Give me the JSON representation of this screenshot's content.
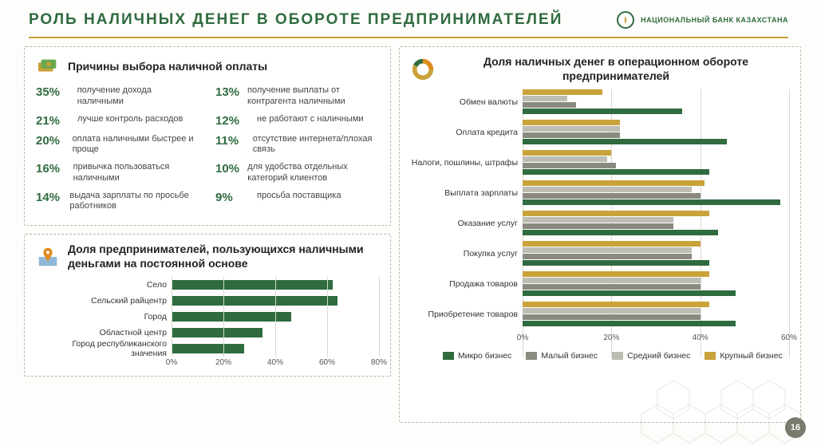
{
  "colors": {
    "title": "#2f6b3f",
    "gold": "#c9a23a",
    "green": "#2f6b3f",
    "grey_mid": "#8a8a80",
    "grey_light": "#bdbdb3",
    "orange": "#e08b1f",
    "page_badge": "#7a7a6e"
  },
  "header": {
    "title": "РОЛЬ НАЛИЧНЫХ ДЕНЕГ В ОБОРОТЕ ПРЕДПРИНИМАТЕЛЕЙ",
    "brand": "НАЦИОНАЛЬНЫЙ БАНК КАЗАХСТАНА"
  },
  "page_number": "16",
  "reasons": {
    "title": "Причины выбора наличной оплаты",
    "left": [
      {
        "pct": "35%",
        "txt": "получение дохода наличными"
      },
      {
        "pct": "21%",
        "txt": "лучше контроль расходов"
      },
      {
        "pct": "20%",
        "txt": "оплата наличными быстрее и проще"
      },
      {
        "pct": "16%",
        "txt": "привычка пользоваться наличными"
      },
      {
        "pct": "14%",
        "txt": "выдача зарплаты по просьбе работников"
      }
    ],
    "right": [
      {
        "pct": "13%",
        "txt": "получение выплаты от контрагента наличными"
      },
      {
        "pct": "12%",
        "txt": "не работают с наличными"
      },
      {
        "pct": "11%",
        "txt": "отсутствие интернета/плохая связь"
      },
      {
        "pct": "10%",
        "txt": "для удобства отдельных категорий клиентов"
      },
      {
        "pct": "9%",
        "txt": "просьба поставщика"
      }
    ]
  },
  "usage_chart": {
    "title": "Доля предпринимателей, пользующихся наличными деньгами на постоянной основе",
    "type": "bar-horizontal",
    "xmax": 80,
    "ticks": [
      0,
      20,
      40,
      60,
      80
    ],
    "bar_color": "#2f6b3f",
    "rows": [
      {
        "label": "Село",
        "value": 62
      },
      {
        "label": "Сельский райцентр",
        "value": 64
      },
      {
        "label": "Город",
        "value": 46
      },
      {
        "label": "Областной центр",
        "value": 35
      },
      {
        "label": "Город республиканского значения",
        "value": 28
      }
    ]
  },
  "ops_chart": {
    "title": "Доля наличных денег в операционном обороте предпринимателей",
    "type": "grouped-bar-horizontal",
    "xmax": 60,
    "ticks": [
      0,
      20,
      40,
      60
    ],
    "series": [
      {
        "name": "Микро бизнес",
        "color": "#2f6b3f"
      },
      {
        "name": "Малый бизнес",
        "color": "#8a8a80"
      },
      {
        "name": "Средний бизнес",
        "color": "#bdbdb3"
      },
      {
        "name": "Крупный бизнес",
        "color": "#c9a23a"
      }
    ],
    "categories": [
      {
        "label": "Обмен валюты",
        "values": [
          36,
          12,
          10,
          18
        ]
      },
      {
        "label": "Оплата кредита",
        "values": [
          46,
          22,
          22,
          22
        ]
      },
      {
        "label": "Налоги, пошлины, штрафы",
        "values": [
          42,
          21,
          19,
          20
        ]
      },
      {
        "label": "Выплата зарплаты",
        "values": [
          58,
          40,
          38,
          41
        ]
      },
      {
        "label": "Оказание услуг",
        "values": [
          44,
          34,
          34,
          42
        ]
      },
      {
        "label": "Покупка услуг",
        "values": [
          42,
          38,
          38,
          40
        ]
      },
      {
        "label": "Продажа товаров",
        "values": [
          48,
          40,
          40,
          42
        ]
      },
      {
        "label": "Приобретение товаров",
        "values": [
          48,
          40,
          40,
          42
        ]
      }
    ]
  }
}
